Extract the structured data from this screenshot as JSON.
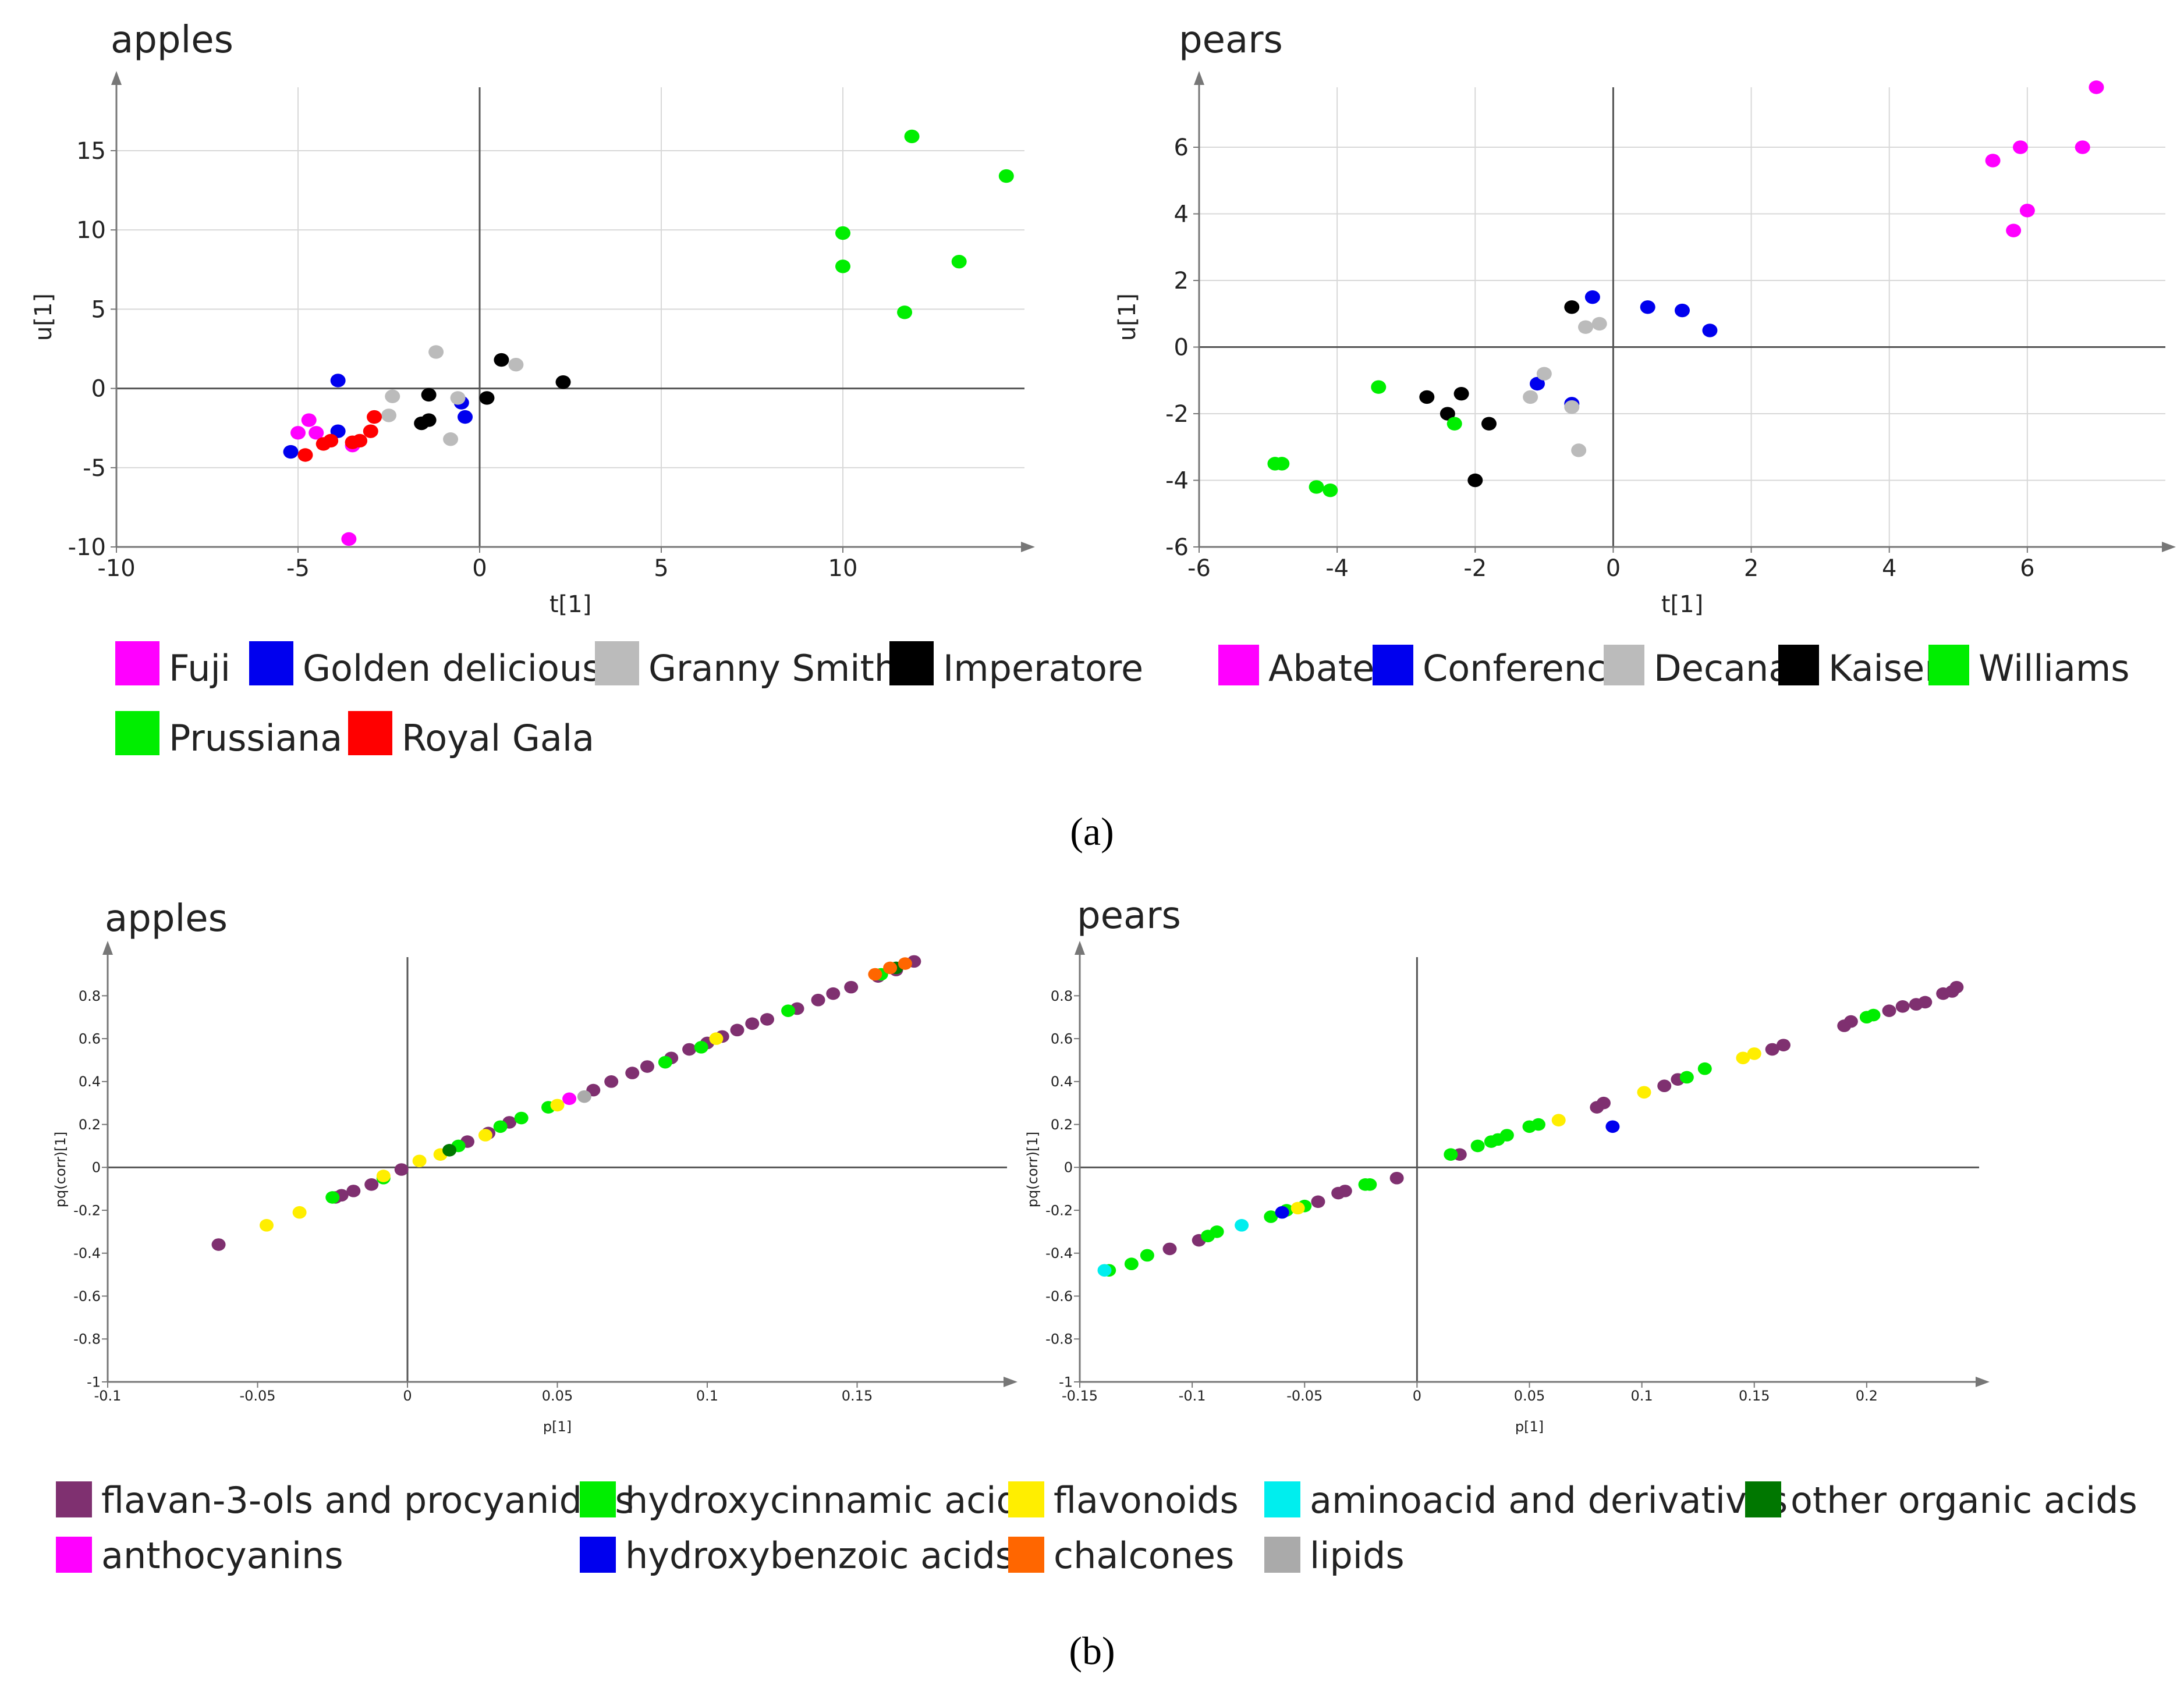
{
  "captions": {
    "a": "(a)",
    "b": "(b)"
  },
  "chart_data": [
    {
      "type": "scatter",
      "title": "apples",
      "xlabel": "t[1]",
      "ylabel": "u[1]",
      "xlim": [
        -10,
        15
      ],
      "ylim": [
        -10,
        19
      ],
      "xticks": [
        -10,
        -5,
        0,
        5,
        10
      ],
      "yticks": [
        -10,
        -5,
        0,
        5,
        10,
        15
      ],
      "xtick_labels": [
        "-10",
        "-5",
        "0",
        "5",
        "10"
      ],
      "ytick_labels": [
        "-10",
        "-5",
        "0",
        "5",
        "10",
        "15"
      ],
      "grid": true,
      "legend_position": "bottom",
      "series": [
        {
          "name": "Fuji",
          "color": "#ff00ff",
          "points": [
            [
              -5.0,
              -2.8
            ],
            [
              -4.5,
              -2.8
            ],
            [
              -4.7,
              -2.0
            ],
            [
              -3.5,
              -3.6
            ],
            [
              -3.6,
              -9.5
            ]
          ]
        },
        {
          "name": "Golden delicious",
          "color": "#0000ee",
          "points": [
            [
              -3.9,
              0.5
            ],
            [
              -3.9,
              -2.7
            ],
            [
              -5.2,
              -4.0
            ],
            [
              -0.4,
              -1.8
            ],
            [
              -0.5,
              -0.9
            ]
          ]
        },
        {
          "name": "Granny Smith",
          "color": "#bbbbbb",
          "points": [
            [
              -1.2,
              2.3
            ],
            [
              -2.4,
              -0.5
            ],
            [
              -2.5,
              -1.7
            ],
            [
              -0.8,
              -3.2
            ],
            [
              -0.6,
              -0.6
            ],
            [
              1.0,
              1.5
            ]
          ]
        },
        {
          "name": "Imperatore",
          "color": "#000000",
          "points": [
            [
              0.6,
              1.8
            ],
            [
              2.3,
              0.4
            ],
            [
              -1.4,
              -0.4
            ],
            [
              -1.6,
              -2.2
            ],
            [
              -1.4,
              -2.0
            ],
            [
              0.2,
              -0.6
            ]
          ]
        },
        {
          "name": "Prussiana",
          "color": "#00ee00",
          "points": [
            [
              11.9,
              15.9
            ],
            [
              14.5,
              13.4
            ],
            [
              10.0,
              9.8
            ],
            [
              10.0,
              7.7
            ],
            [
              13.2,
              8.0
            ],
            [
              11.7,
              4.8
            ]
          ]
        },
        {
          "name": "Royal Gala",
          "color": "#ff0000",
          "points": [
            [
              -4.8,
              -4.2
            ],
            [
              -4.3,
              -3.5
            ],
            [
              -4.1,
              -3.3
            ],
            [
              -3.3,
              -3.3
            ],
            [
              -3.0,
              -2.7
            ],
            [
              -2.9,
              -1.8
            ],
            [
              -3.5,
              -3.4
            ]
          ]
        }
      ]
    },
    {
      "type": "scatter",
      "title": "pears",
      "xlabel": "t[1]",
      "ylabel": "u[1]",
      "xlim": [
        -6,
        8
      ],
      "ylim": [
        -6,
        7.8
      ],
      "xticks": [
        -6,
        -4,
        -2,
        0,
        2,
        4,
        6
      ],
      "yticks": [
        -6,
        -4,
        -2,
        0,
        2,
        4,
        6
      ],
      "xtick_labels": [
        "-6",
        "-4",
        "-2",
        "0",
        "2",
        "4",
        "6"
      ],
      "ytick_labels": [
        "-6",
        "-4",
        "-2",
        "0",
        "2",
        "4",
        "6"
      ],
      "grid": true,
      "legend_position": "bottom",
      "series": [
        {
          "name": "Abate",
          "color": "#ff00ff",
          "points": [
            [
              7.0,
              7.8
            ],
            [
              5.9,
              6.0
            ],
            [
              6.8,
              6.0
            ],
            [
              5.5,
              5.6
            ],
            [
              6.0,
              4.1
            ],
            [
              5.8,
              3.5
            ]
          ]
        },
        {
          "name": "Conference",
          "color": "#0000ee",
          "points": [
            [
              -0.3,
              1.5
            ],
            [
              0.5,
              1.2
            ],
            [
              1.0,
              1.1
            ],
            [
              1.4,
              0.5
            ],
            [
              -1.1,
              -1.1
            ],
            [
              -0.6,
              -1.7
            ]
          ]
        },
        {
          "name": "Decana",
          "color": "#bbbbbb",
          "points": [
            [
              -0.4,
              0.6
            ],
            [
              -0.2,
              0.7
            ],
            [
              -1.0,
              -0.8
            ],
            [
              -1.2,
              -1.5
            ],
            [
              -0.6,
              -1.8
            ],
            [
              -0.5,
              -3.1
            ]
          ]
        },
        {
          "name": "Kaiser",
          "color": "#000000",
          "points": [
            [
              -0.6,
              1.2
            ],
            [
              -2.7,
              -1.5
            ],
            [
              -2.2,
              -1.4
            ],
            [
              -2.4,
              -2.0
            ],
            [
              -1.8,
              -2.3
            ],
            [
              -2.0,
              -4.0
            ]
          ]
        },
        {
          "name": "Williams",
          "color": "#00ee00",
          "points": [
            [
              -3.4,
              -1.2
            ],
            [
              -2.3,
              -2.3
            ],
            [
              -4.9,
              -3.5
            ],
            [
              -4.8,
              -3.5
            ],
            [
              -4.3,
              -4.2
            ],
            [
              -4.1,
              -4.3
            ]
          ]
        }
      ]
    },
    {
      "type": "scatter",
      "title": "apples",
      "xlabel": "p[1]",
      "ylabel": "pq(corr)[1]",
      "xlim": [
        -0.1,
        0.2
      ],
      "ylim": [
        -1,
        0.98
      ],
      "xticks": [
        -0.1,
        -0.05,
        0,
        0.05,
        0.1,
        0.15
      ],
      "xtick_labels": [
        "-0.1",
        "-0.05",
        "0",
        "0.05",
        "0.1",
        "0.15"
      ],
      "yticks": [
        -1,
        -0.8,
        -0.6,
        -0.4,
        -0.2,
        0,
        0.2,
        0.4,
        0.6,
        0.8
      ],
      "ytick_labels": [
        "-1",
        "-0.8",
        "-0.6",
        "-0.4",
        "-0.2",
        "0",
        "0.2",
        "0.4",
        "0.6",
        "0.8"
      ],
      "grid": false,
      "legend_position": "bottom",
      "series": [
        {
          "name": "flavan-3-ols and procyanidins",
          "color": "#7f3070",
          "points": [
            [
              -0.063,
              -0.36
            ],
            [
              -0.024,
              -0.14
            ],
            [
              -0.022,
              -0.13
            ],
            [
              -0.018,
              -0.11
            ],
            [
              -0.012,
              -0.08
            ],
            [
              -0.002,
              -0.01
            ],
            [
              0.02,
              0.12
            ],
            [
              0.027,
              0.16
            ],
            [
              0.034,
              0.21
            ],
            [
              0.062,
              0.36
            ],
            [
              0.068,
              0.4
            ],
            [
              0.075,
              0.44
            ],
            [
              0.08,
              0.47
            ],
            [
              0.088,
              0.51
            ],
            [
              0.094,
              0.55
            ],
            [
              0.1,
              0.58
            ],
            [
              0.105,
              0.61
            ],
            [
              0.11,
              0.64
            ],
            [
              0.115,
              0.67
            ],
            [
              0.12,
              0.69
            ],
            [
              0.13,
              0.74
            ],
            [
              0.137,
              0.78
            ],
            [
              0.142,
              0.81
            ],
            [
              0.148,
              0.84
            ],
            [
              0.157,
              0.89
            ],
            [
              0.163,
              0.92
            ],
            [
              0.169,
              0.96
            ]
          ]
        },
        {
          "name": "hydroxycinnamic acids",
          "color": "#00ee00",
          "points": [
            [
              -0.025,
              -0.14
            ],
            [
              -0.008,
              -0.05
            ],
            [
              0.017,
              0.1
            ],
            [
              0.031,
              0.19
            ],
            [
              0.038,
              0.23
            ],
            [
              0.047,
              0.28
            ],
            [
              0.086,
              0.49
            ],
            [
              0.098,
              0.56
            ],
            [
              0.127,
              0.73
            ],
            [
              0.158,
              0.9
            ]
          ]
        },
        {
          "name": "flavonoids",
          "color": "#ffee00",
          "points": [
            [
              -0.047,
              -0.27
            ],
            [
              -0.036,
              -0.21
            ],
            [
              -0.008,
              -0.04
            ],
            [
              0.004,
              0.03
            ],
            [
              0.011,
              0.06
            ],
            [
              0.026,
              0.15
            ],
            [
              0.05,
              0.29
            ],
            [
              0.103,
              0.6
            ]
          ]
        },
        {
          "name": "aminoacid and derivatives",
          "color": "#00eeee",
          "points": []
        },
        {
          "name": "other organic acids",
          "color": "#007700",
          "points": [
            [
              0.014,
              0.08
            ],
            [
              0.163,
              0.93
            ]
          ]
        },
        {
          "name": "anthocyanins",
          "color": "#ff00ff",
          "points": [
            [
              0.054,
              0.32
            ]
          ]
        },
        {
          "name": "hydroxybenzoic acids",
          "color": "#0000ee",
          "points": []
        },
        {
          "name": "chalcones",
          "color": "#ff6600",
          "points": [
            [
              0.156,
              0.9
            ],
            [
              0.161,
              0.93
            ],
            [
              0.166,
              0.95
            ]
          ]
        },
        {
          "name": "lipids",
          "color": "#aaaaaa",
          "points": [
            [
              0.059,
              0.33
            ]
          ]
        }
      ]
    },
    {
      "type": "scatter",
      "title": "pears",
      "xlabel": "p[1]",
      "ylabel": "pq(corr)[1]",
      "xlim": [
        -0.15,
        0.25
      ],
      "ylim": [
        -1,
        0.98
      ],
      "xticks": [
        -0.15,
        -0.1,
        -0.05,
        0,
        0.05,
        0.1,
        0.15,
        0.2
      ],
      "xtick_labels": [
        "-0.15",
        "-0.1",
        "-0.05",
        "0",
        "0.05",
        "0.1",
        "0.15",
        "0.2"
      ],
      "yticks": [
        -1,
        -0.8,
        -0.6,
        -0.4,
        -0.2,
        0,
        0.2,
        0.4,
        0.6,
        0.8
      ],
      "ytick_labels": [
        "-1",
        "-0.8",
        "-0.6",
        "-0.4",
        "-0.2",
        "0",
        "0.2",
        "0.4",
        "0.6",
        "0.8"
      ],
      "grid": false,
      "legend_position": "bottom",
      "series": [
        {
          "name": "flavan-3-ols and procyanidins",
          "color": "#7f3070",
          "points": [
            [
              -0.11,
              -0.38
            ],
            [
              -0.097,
              -0.34
            ],
            [
              -0.044,
              -0.16
            ],
            [
              -0.035,
              -0.12
            ],
            [
              -0.032,
              -0.11
            ],
            [
              -0.009,
              -0.05
            ],
            [
              0.019,
              0.06
            ],
            [
              0.08,
              0.28
            ],
            [
              0.083,
              0.3
            ],
            [
              0.11,
              0.38
            ],
            [
              0.116,
              0.41
            ],
            [
              0.158,
              0.55
            ],
            [
              0.163,
              0.57
            ],
            [
              0.19,
              0.66
            ],
            [
              0.193,
              0.68
            ],
            [
              0.21,
              0.73
            ],
            [
              0.216,
              0.75
            ],
            [
              0.222,
              0.76
            ],
            [
              0.226,
              0.77
            ],
            [
              0.234,
              0.81
            ],
            [
              0.238,
              0.82
            ],
            [
              0.24,
              0.84
            ]
          ]
        },
        {
          "name": "hydroxycinnamic acids",
          "color": "#00ee00",
          "points": [
            [
              -0.137,
              -0.48
            ],
            [
              -0.127,
              -0.45
            ],
            [
              -0.12,
              -0.41
            ],
            [
              -0.093,
              -0.32
            ],
            [
              -0.089,
              -0.3
            ],
            [
              -0.065,
              -0.23
            ],
            [
              -0.058,
              -0.2
            ],
            [
              -0.05,
              -0.18
            ],
            [
              -0.023,
              -0.08
            ],
            [
              -0.021,
              -0.08
            ],
            [
              0.015,
              0.06
            ],
            [
              0.027,
              0.1
            ],
            [
              0.033,
              0.12
            ],
            [
              0.036,
              0.13
            ],
            [
              0.04,
              0.15
            ],
            [
              0.05,
              0.19
            ],
            [
              0.054,
              0.2
            ],
            [
              0.12,
              0.42
            ],
            [
              0.128,
              0.46
            ],
            [
              0.2,
              0.7
            ],
            [
              0.203,
              0.71
            ]
          ]
        },
        {
          "name": "flavonoids",
          "color": "#ffee00",
          "points": [
            [
              -0.053,
              -0.19
            ],
            [
              0.063,
              0.22
            ],
            [
              0.101,
              0.35
            ],
            [
              0.145,
              0.51
            ],
            [
              0.15,
              0.53
            ]
          ]
        },
        {
          "name": "aminoacid and derivatives",
          "color": "#00eeee",
          "points": [
            [
              -0.139,
              -0.48
            ],
            [
              -0.078,
              -0.27
            ]
          ]
        },
        {
          "name": "other organic acids",
          "color": "#007700",
          "points": []
        },
        {
          "name": "anthocyanins",
          "color": "#ff00ff",
          "points": []
        },
        {
          "name": "hydroxybenzoic acids",
          "color": "#0000ee",
          "points": [
            [
              -0.06,
              -0.21
            ],
            [
              0.087,
              0.19
            ]
          ]
        },
        {
          "name": "chalcones",
          "color": "#ff6600",
          "points": []
        },
        {
          "name": "lipids",
          "color": "#aaaaaa",
          "points": []
        }
      ]
    }
  ],
  "legends": {
    "a_apples": [
      {
        "label": "Fuji",
        "color": "#ff00ff"
      },
      {
        "label": "Golden delicious",
        "color": "#0000ee"
      },
      {
        "label": "Granny Smith",
        "color": "#bbbbbb"
      },
      {
        "label": "Imperatore",
        "color": "#000000"
      },
      {
        "label": "Prussiana",
        "color": "#00ee00"
      },
      {
        "label": "Royal Gala",
        "color": "#ff0000"
      }
    ],
    "a_pears": [
      {
        "label": "Abate",
        "color": "#ff00ff"
      },
      {
        "label": "Conference",
        "color": "#0000ee"
      },
      {
        "label": "Decana",
        "color": "#bbbbbb"
      },
      {
        "label": "Kaiser",
        "color": "#000000"
      },
      {
        "label": "Williams",
        "color": "#00ee00"
      }
    ],
    "b": [
      {
        "label": "flavan-3-ols and procyanidins",
        "color": "#7f3070"
      },
      {
        "label": "hydroxycinnamic acids",
        "color": "#00ee00"
      },
      {
        "label": "flavonoids",
        "color": "#ffee00"
      },
      {
        "label": "aminoacid and derivatives",
        "color": "#00eeee"
      },
      {
        "label": "other organic acids",
        "color": "#007700"
      },
      {
        "label": "anthocyanins",
        "color": "#ff00ff"
      },
      {
        "label": "hydroxybenzoic acids",
        "color": "#0000ee"
      },
      {
        "label": "chalcones",
        "color": "#ff6600"
      },
      {
        "label": "lipids",
        "color": "#aaaaaa"
      }
    ]
  }
}
